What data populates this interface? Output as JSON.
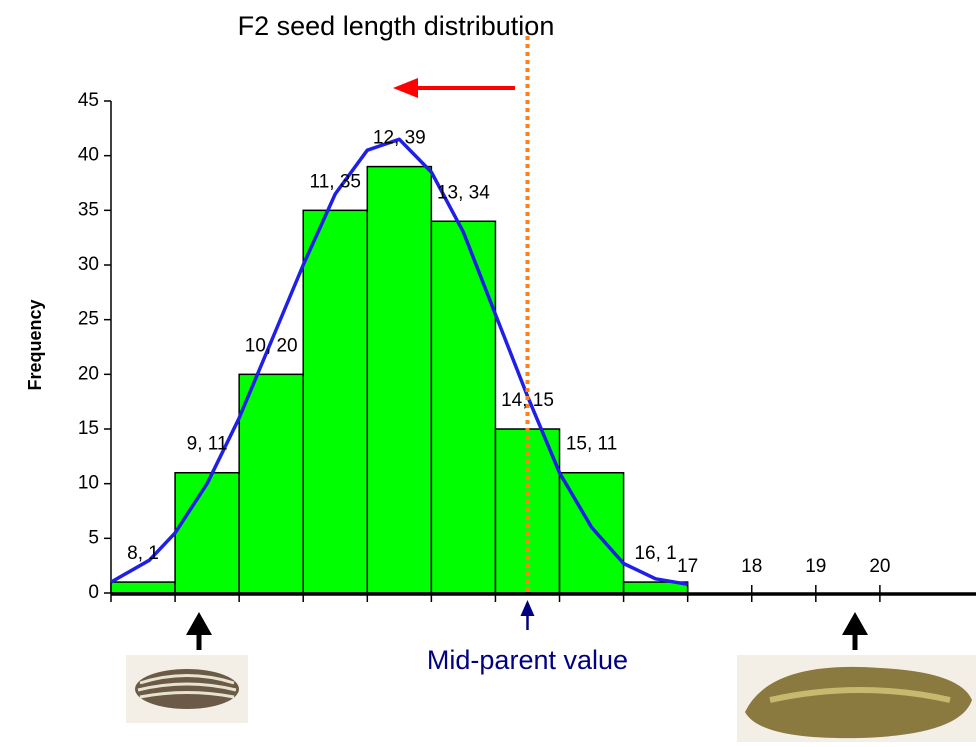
{
  "chart_data": {
    "type": "histogram",
    "title": "F2 seed length distribution",
    "y_label": "Frequency",
    "bins": [
      8,
      9,
      10,
      11,
      12,
      13,
      14,
      15,
      16,
      17
    ],
    "values": [
      1,
      11,
      20,
      35,
      39,
      34,
      15,
      11,
      1
    ],
    "value_labels": [
      "8, 1",
      "9, 11",
      "10, 20",
      "11, 35",
      "12, 39",
      "13, 34",
      "14, 15",
      "15, 11",
      "16, 1"
    ],
    "color": "#00ff00",
    "xlim": [
      8,
      21.5
    ],
    "xticks": [
      17,
      18,
      19,
      20
    ],
    "xticks_unlabeled": [
      8,
      9,
      10,
      11,
      12,
      13,
      14,
      15,
      16
    ],
    "ylim": [
      0,
      45
    ],
    "yticks": [
      0,
      5,
      10,
      15,
      20,
      25,
      30,
      35,
      40,
      45
    ],
    "curve": {
      "color": "#1f1fe6",
      "x": [
        8,
        8.6,
        9,
        9.5,
        10,
        10.5,
        11,
        11.5,
        12,
        12.5,
        13,
        13.5,
        14,
        14.5,
        15,
        15.5,
        16,
        16.5,
        17
      ],
      "y": [
        1,
        3,
        5.5,
        10,
        16,
        23,
        30,
        36.5,
        40.5,
        41.5,
        38.5,
        33,
        25.5,
        18,
        11,
        6,
        2.7,
        1.3,
        0.8
      ]
    },
    "midparent": {
      "x": 14.5,
      "label": "Mid-parent value",
      "color": "#ff7f1e"
    }
  }
}
